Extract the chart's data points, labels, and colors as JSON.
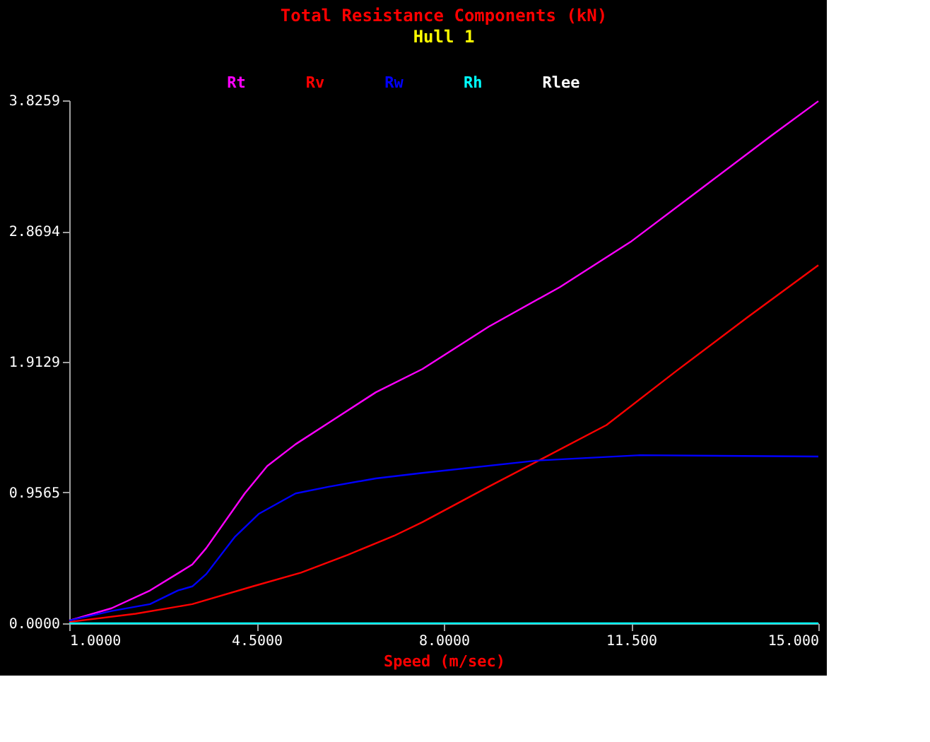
{
  "chart_data": {
    "type": "line",
    "title": "Total Resistance Components (kN)",
    "subtitle": "Hull 1",
    "xlabel": "Speed (m/sec)",
    "xlim": [
      1,
      15
    ],
    "xticks": [
      {
        "value": 1,
        "label": "1.0000"
      },
      {
        "value": 4.5,
        "label": "4.5000"
      },
      {
        "value": 8,
        "label": "8.0000"
      },
      {
        "value": 11.5,
        "label": "11.500"
      },
      {
        "value": 15,
        "label": "15.000"
      }
    ],
    "ylim": [
      0,
      3.8259
    ],
    "yticks": [
      {
        "value": 0,
        "label": "0.0000"
      },
      0.9565,
      1.9129,
      2.8694,
      3.8259
    ],
    "grid": false,
    "legend": "top",
    "marker": "none",
    "line_style": "solid",
    "series": [
      {
        "name": "Rt",
        "color": "#ff00ff",
        "x": [
          1,
          1.79,
          2.51,
          3.3,
          3.56,
          4.28,
          4.7,
          5.23,
          5.86,
          6.73,
          7.6,
          8.84,
          10.17,
          11.49,
          12.81,
          14.13,
          15
        ],
        "values": [
          0.02,
          0.11,
          0.24,
          0.43,
          0.55,
          0.95,
          1.15,
          1.31,
          1.47,
          1.69,
          1.86,
          2.17,
          2.46,
          2.79,
          3.18,
          3.57,
          3.82
        ]
      },
      {
        "name": "Rv",
        "color": "#ff0000",
        "x": [
          1,
          2.24,
          3.3,
          4.43,
          5.33,
          6.2,
          7.07,
          7.6,
          8.84,
          9.82,
          11.04,
          12.36,
          13.68,
          15
        ],
        "values": [
          0.01,
          0.07,
          0.14,
          0.27,
          0.37,
          0.5,
          0.64,
          0.74,
          1.0,
          1.2,
          1.45,
          1.85,
          2.24,
          2.62
        ]
      },
      {
        "name": "Rw",
        "color": "#0000ff",
        "x": [
          1,
          1.79,
          2.51,
          3.03,
          3.3,
          3.56,
          4.09,
          4.54,
          5.23,
          5.86,
          6.73,
          7.6,
          9.72,
          11.67,
          15
        ],
        "values": [
          0.02,
          0.09,
          0.14,
          0.24,
          0.27,
          0.36,
          0.63,
          0.8,
          0.95,
          1.0,
          1.06,
          1.1,
          1.19,
          1.23,
          1.22
        ]
      },
      {
        "name": "Rh",
        "color": "#00ffff",
        "x": [
          1,
          15
        ],
        "values": [
          0,
          0
        ]
      },
      {
        "name": "Rlee",
        "color": "#ffffff"
      }
    ]
  }
}
